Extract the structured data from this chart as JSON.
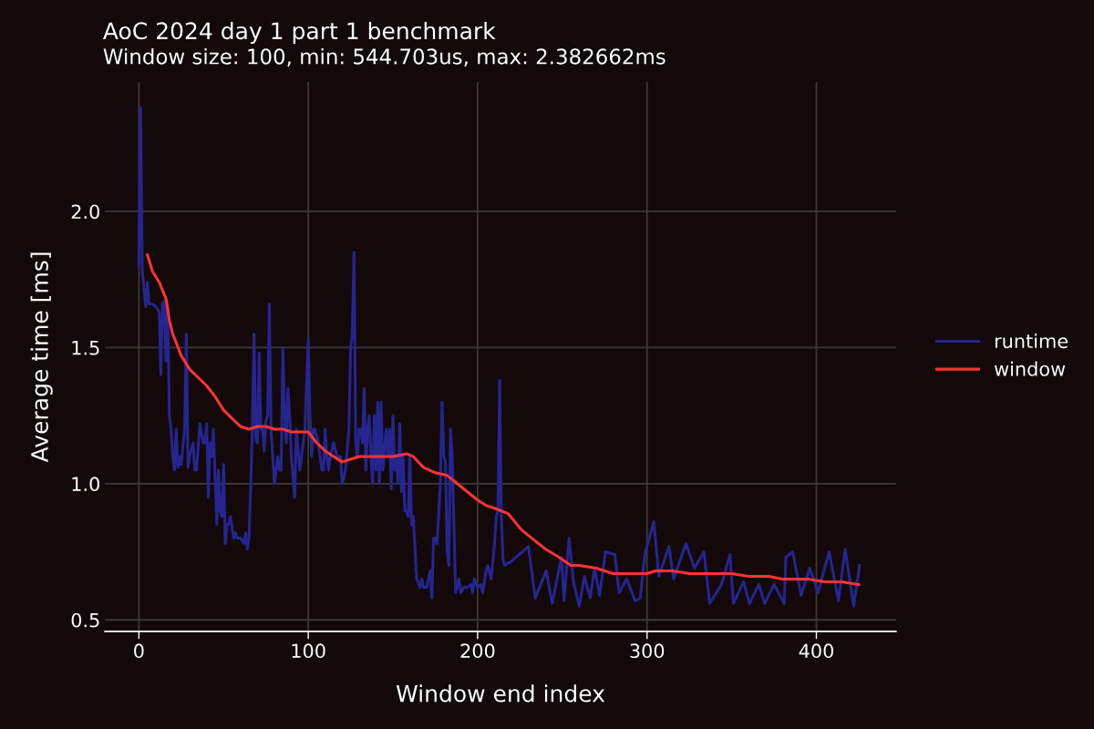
{
  "chart_data": {
    "type": "line",
    "title": "AoC 2024 day 1 part 1 benchmark",
    "subtitle": "Window size: 100, min: 544.703us, max: 2.382662ms",
    "xlabel": "Window end index",
    "ylabel": "Average time [ms]",
    "xlim": [
      -20,
      447
    ],
    "ylim": [
      0.458,
      2.475
    ],
    "xticks": [
      0,
      100,
      200,
      300,
      400
    ],
    "yticks": [
      0.5,
      {
        "value": 1,
        "label": "1.0"
      },
      1.5,
      {
        "value": 2,
        "label": "2.0"
      }
    ],
    "grid": true,
    "legend": "right",
    "series": [
      {
        "name": "runtime",
        "color": "#252590",
        "x": [
          0,
          1,
          2,
          3,
          4,
          5,
          6,
          8,
          10,
          12,
          13,
          14,
          15,
          16,
          17,
          18,
          19,
          20,
          21,
          22,
          23,
          24,
          25,
          27,
          28,
          29,
          30,
          32,
          33,
          34,
          36,
          38,
          39,
          40,
          41,
          42,
          43,
          44,
          46,
          47,
          48,
          49,
          50,
          51,
          52,
          53,
          54,
          56,
          57,
          58,
          60,
          62,
          63,
          64,
          65,
          66,
          67,
          68,
          69,
          70,
          71,
          72,
          73,
          74,
          75,
          76,
          77,
          78,
          80,
          82,
          83,
          84,
          85,
          86,
          87,
          88,
          89,
          90,
          92,
          93,
          95,
          96,
          98,
          100,
          101,
          102,
          103,
          104,
          106,
          108,
          109,
          110,
          111,
          112,
          113,
          115,
          117,
          119,
          120,
          122,
          124,
          125,
          126,
          127,
          128,
          129,
          130,
          131,
          132,
          133,
          134,
          135,
          136,
          137,
          138,
          139,
          140,
          141,
          142,
          143,
          144,
          146,
          147,
          148,
          149,
          150,
          151,
          152,
          153,
          154,
          155,
          156,
          157,
          158,
          159,
          160,
          161,
          162,
          164,
          166,
          167,
          168,
          170,
          172,
          173,
          174,
          175,
          176,
          178,
          179,
          180,
          181,
          182,
          183,
          184,
          185,
          186,
          187,
          189,
          190,
          192,
          194,
          196,
          197,
          198,
          200,
          202,
          203,
          205,
          206,
          208,
          210,
          211,
          212,
          213,
          214,
          215,
          216,
          218,
          219,
          230,
          234,
          240.5,
          244,
          249.5,
          251,
          254,
          256.6,
          260,
          263,
          266.5,
          269,
          272,
          275.5,
          281,
          283.5,
          288,
          293,
          296,
          298.7,
          304,
          307,
          313,
          315.7,
          323,
          328,
          333.6,
          337,
          344,
          349,
          351,
          357,
          360.5,
          366,
          369.5,
          375,
          381,
          382,
          386,
          391,
          396,
          401,
          407.5,
          413,
          417,
          422,
          425.5
        ],
        "values": [
          1.8,
          2.38,
          1.78,
          1.72,
          1.65,
          1.74,
          1.66,
          1.66,
          1.65,
          1.63,
          1.4,
          1.66,
          1.67,
          1.45,
          1.65,
          1.25,
          1.2,
          1.1,
          1.05,
          1.2,
          1.06,
          1.1,
          1.07,
          1.2,
          1.55,
          1.06,
          1.1,
          1.15,
          1.05,
          1.05,
          1.22,
          1.15,
          1.15,
          1.22,
          0.95,
          1.15,
          1.1,
          1.2,
          0.85,
          1.05,
          0.9,
          0.88,
          1.07,
          0.78,
          0.85,
          0.85,
          0.88,
          0.8,
          0.82,
          0.8,
          0.8,
          0.78,
          0.82,
          0.76,
          0.8,
          0.99,
          1.2,
          1.55,
          1.17,
          1.15,
          1.48,
          1.2,
          1.2,
          1.12,
          1.23,
          1.25,
          1.66,
          1.2,
          1.0,
          1.1,
          1.05,
          1.05,
          1.5,
          1.25,
          1.15,
          1.35,
          1.25,
          1.1,
          0.95,
          1.2,
          1.05,
          1.1,
          1.2,
          1.53,
          1.25,
          1.1,
          1.2,
          1.2,
          1.15,
          1.05,
          1.05,
          1.2,
          1.1,
          1.05,
          1.1,
          1.15,
          1.1,
          1.1,
          1.0,
          1.05,
          1.2,
          1.5,
          1.55,
          1.85,
          1.15,
          1.1,
          1.2,
          1.2,
          1.15,
          1.35,
          1.05,
          1.2,
          1.25,
          1.1,
          1.0,
          1.25,
          1.05,
          1.3,
          1.0,
          1.3,
          1.05,
          1.2,
          1.1,
          1.2,
          0.98,
          1.25,
          1.05,
          1.1,
          1.0,
          1.22,
          0.97,
          1.1,
          0.9,
          0.9,
          0.88,
          1.1,
          0.85,
          0.88,
          0.65,
          0.62,
          0.65,
          0.62,
          0.62,
          0.68,
          0.58,
          0.8,
          0.8,
          0.78,
          1.0,
          1.3,
          1.1,
          1.08,
          0.75,
          0.7,
          1.2,
          1.1,
          0.85,
          0.6,
          0.65,
          0.6,
          0.62,
          0.62,
          0.63,
          0.6,
          0.65,
          0.62,
          0.63,
          0.6,
          0.68,
          0.7,
          0.65,
          0.78,
          0.88,
          0.9,
          1.38,
          0.88,
          0.72,
          0.7,
          0.71,
          0.71,
          0.77,
          0.58,
          0.68,
          0.56,
          0.73,
          0.57,
          0.8,
          0.64,
          0.55,
          0.66,
          0.58,
          0.69,
          0.59,
          0.75,
          0.74,
          0.6,
          0.65,
          0.57,
          0.58,
          0.74,
          0.86,
          0.66,
          0.77,
          0.65,
          0.78,
          0.69,
          0.75,
          0.56,
          0.63,
          0.74,
          0.56,
          0.64,
          0.56,
          0.63,
          0.56,
          0.63,
          0.56,
          0.73,
          0.75,
          0.59,
          0.69,
          0.6,
          0.75,
          0.57,
          0.76,
          0.55,
          0.7
        ]
      },
      {
        "name": "window",
        "color": "#ff3333",
        "x": [
          5,
          8,
          12,
          14,
          16,
          18,
          20,
          25,
          30,
          35,
          40,
          45,
          50,
          55,
          60,
          65,
          70,
          75,
          80,
          85,
          90,
          100,
          105,
          110,
          115,
          120,
          125,
          130,
          140,
          150,
          158,
          162,
          168,
          175,
          182,
          190,
          200,
          205,
          210,
          218,
          222,
          226,
          232,
          240,
          248,
          255,
          260,
          270,
          280,
          290,
          300,
          305,
          315,
          325,
          340,
          350,
          360,
          372,
          380,
          385,
          395,
          405,
          415,
          425
        ],
        "values": [
          1.84,
          1.78,
          1.74,
          1.71,
          1.68,
          1.6,
          1.55,
          1.47,
          1.42,
          1.39,
          1.36,
          1.32,
          1.27,
          1.24,
          1.21,
          1.2,
          1.21,
          1.21,
          1.2,
          1.2,
          1.19,
          1.19,
          1.15,
          1.12,
          1.1,
          1.08,
          1.09,
          1.1,
          1.1,
          1.1,
          1.11,
          1.1,
          1.06,
          1.04,
          1.03,
          0.99,
          0.94,
          0.92,
          0.91,
          0.89,
          0.86,
          0.83,
          0.8,
          0.76,
          0.73,
          0.7,
          0.7,
          0.69,
          0.67,
          0.67,
          0.67,
          0.68,
          0.68,
          0.67,
          0.67,
          0.67,
          0.66,
          0.66,
          0.65,
          0.65,
          0.65,
          0.64,
          0.64,
          0.63
        ]
      }
    ]
  }
}
